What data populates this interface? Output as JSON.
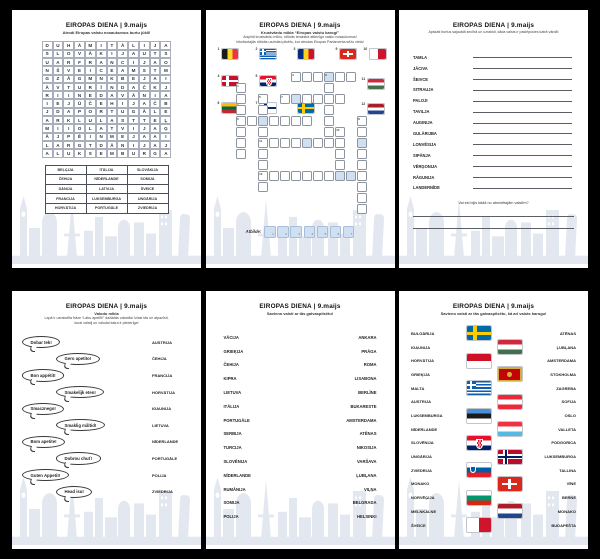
{
  "common": {
    "title": "EIROPAS DIENA  |  9.maijs"
  },
  "colors": {
    "board_bg": "#000000",
    "page_bg": "#ffffff",
    "highlight_blue": "#cfe0f3",
    "skyline_gray": "#e1e5ee"
  },
  "wordsearch": {
    "subtitle": "Atrodi Eiropas valstu nosaukumus burtu jūklī!",
    "grid_rows": [
      "DUHĀMITĀLIJA",
      "SLOVĀKIJAUTS",
      "UARFRANCIJAO",
      "NŠVEICEAMSTM",
      "GZĀGMNKBEJAI",
      "ĀVTURĪNDAČKJ",
      "RIINEDAVĀNIA",
      "IEJŪČEHIJAČB",
      "JDAPORTUGĀLE",
      "ARKLULASTTEĻ",
      "MIIOLATVIJAĢ",
      "ĀJPĒINMEJAAI",
      "LARGTDĀNIJAJ",
      "ALUKSEMBURGA"
    ],
    "table": [
      [
        "BEĻĢIJA",
        "ITĀLIJA",
        "SLOVĀKIJA"
      ],
      [
        "ČEHIJA",
        "NĪDERLANDE",
        "SOMIJA"
      ],
      [
        "DĀNIJA",
        "LATVIJA",
        "ŠVEICE"
      ],
      [
        "FRANCIJA",
        "LUKSEMBURGA",
        "UNGĀRIJA"
      ],
      [
        "HORVĀTIJA",
        "PORTUGĀLE",
        "ZVIEDRIJA"
      ]
    ]
  },
  "crossword": {
    "subtitle1": "Krustvārdu mīkla “Eiropas valstu karogi”",
    "subtitle2": "Aizpildi krustvārdu mīklu, rūtiņās ierakstot attiecīgo valstu nosaukumus!",
    "subtitle3": "Iekrāsotajās rūtiņās uzzināsi pilsētu, kur atrodas Eiropas Parlamenta sēžu vieta!",
    "flags": [
      {
        "num": "1",
        "country": "belgium"
      },
      {
        "num": "2",
        "country": "greece"
      },
      {
        "num": "3",
        "country": "romania"
      },
      {
        "num": "4",
        "country": "denmark"
      },
      {
        "num": "5",
        "country": "croatia"
      },
      {
        "num": "6",
        "country": "lithuania"
      },
      {
        "num": "7",
        "country": "finland"
      },
      {
        "num": "8",
        "country": "sweden"
      },
      {
        "num": "9",
        "country": "switzerland"
      },
      {
        "num": "10",
        "country": "malta"
      },
      {
        "num": "11",
        "country": "hungary"
      },
      {
        "num": "12",
        "country": "netherlands"
      }
    ],
    "words": [
      {
        "num": "4",
        "dir": "across",
        "row": 0,
        "col": 5,
        "len": 6,
        "blue": [
          3
        ]
      },
      {
        "num": "9",
        "dir": "down",
        "row": 0,
        "col": 8,
        "len": 6,
        "blue": [
          0
        ]
      },
      {
        "num": "1",
        "dir": "down",
        "row": 1,
        "col": 0,
        "len": 7,
        "blue": []
      },
      {
        "num": "7",
        "dir": "across",
        "row": 2,
        "col": 4,
        "len": 6,
        "blue": [
          1
        ]
      },
      {
        "num": "5",
        "dir": "down",
        "row": 2,
        "col": 2,
        "len": 9,
        "blue": []
      },
      {
        "num": "6",
        "dir": "across",
        "row": 4,
        "col": 0,
        "len": 7,
        "blue": [
          2
        ]
      },
      {
        "num": "8",
        "dir": "down",
        "row": 4,
        "col": 11,
        "len": 9,
        "blue": [
          2
        ]
      },
      {
        "num": "10",
        "dir": "down",
        "row": 5,
        "col": 9,
        "len": 5,
        "blue": [
          4
        ]
      },
      {
        "num": "11",
        "dir": "across",
        "row": 6,
        "col": 2,
        "len": 8,
        "blue": [
          4
        ]
      },
      {
        "num": "12",
        "dir": "across",
        "row": 9,
        "col": 2,
        "len": 10,
        "blue": [
          8
        ]
      }
    ],
    "answer_label": "Atbilde:",
    "answer_cells": [
      "1",
      "2",
      "3",
      "4",
      "5",
      "6",
      "7"
    ]
  },
  "anagrams": {
    "subtitle": "Apskati burtus sajauktā secībā un uzraksti, kāda valsts ir paslēpusies katrā vārdā!",
    "items": [
      "TAMLA",
      "JĀCIVA",
      "ŠEIVCE",
      "SITRAUJA",
      "PALOJI",
      "TAVILJA",
      "AUGINIJA",
      "GULĀRIJBA",
      "LONVĒSIJA",
      "SIPĀNJA",
      "VĒRĢONIJA",
      "RĀGUNIJA",
      "LANDERNĪDE"
    ],
    "question": "Vai esi bijis kādā no atminētajām valstīm?"
  },
  "languages": {
    "subtitle1": "Valodu mīkla",
    "subtitle2": "Lapā ir uzrakstīta frāze “Labu apetīti!” dažādās valodās! Izlasi tās un atpazīsti,",
    "subtitle3": "kurai valstij un valodai katra ir piederīga!",
    "bubbles": [
      "Dobar tek!",
      "Gero apetito!",
      "Bon appétit!",
      "Smakelijk eten!",
      "Smacznego!",
      "Smaklig måltid!",
      "Bom apetite!",
      "Dobrou chuť!",
      "Guten Appetit!",
      "Head isu!"
    ],
    "countries": [
      "AUSTRIJA",
      "ČEHIJA",
      "FRANCIJA",
      "HORVĀTIJA",
      "IGAUNIJA",
      "LIETUVA",
      "NĪDERLANDE",
      "PORTUGĀLE",
      "POLIJA",
      "ZVIEDRIJA"
    ]
  },
  "matching": {
    "subtitle": "Savieno valsti ar tās galvaspilsētu!",
    "countries": [
      "VĀCIJA",
      "GRIEĶIJA",
      "ČEHIJA",
      "KIPRA",
      "LIETUVA",
      "ITĀLIJA",
      "PORTUGĀLE",
      "SERBIJA",
      "TURCIJA",
      "SLOVĒNIJA",
      "NĪDERLANDE",
      "RUMĀNIJA",
      "SOMIJA",
      "POLIJA"
    ],
    "capitals": [
      "ANKARA",
      "PRĀGA",
      "ROMA",
      "LISABONA",
      "BERLĪNE",
      "BUKARESTE",
      "AMSTERDAMA",
      "ATĒNAS",
      "NIKOSIJA",
      "VARŠAVA",
      "ĻUBĻANA",
      "VIĻŅA",
      "BELGRADA",
      "HELSINKI"
    ]
  },
  "flagmatch": {
    "subtitle": "Savieno valsti ar tās galvaspilsētu, kā arī valsts karogu!",
    "rows": [
      {
        "country": "BULGĀRIJA",
        "flag": "sweden",
        "capital": "ATĒNAS"
      },
      {
        "country": "IGAUNIJA",
        "flag": "hungary",
        "capital": "ĻUBĻANA"
      },
      {
        "country": "HORVĀTIJA",
        "flag": "monaco",
        "capital": "AMSTERDAMA"
      },
      {
        "country": "GRIEĶIJA",
        "flag": "montenegro",
        "capital": "STOKHOLMA"
      },
      {
        "country": "MALTA",
        "flag": "greece",
        "capital": "ZAGREBA"
      },
      {
        "country": "AUSTRIJA",
        "flag": "austria",
        "capital": "SOFIJA"
      },
      {
        "country": "LUKSEMBURGA",
        "flag": "estonia",
        "capital": "OSLO"
      },
      {
        "country": "NĪDERLANDE",
        "flag": "luxembourg",
        "capital": "VALLETA"
      },
      {
        "country": "SLOVĒNIJA",
        "flag": "croatia",
        "capital": "PODGORICA"
      },
      {
        "country": "UNGĀRIJA",
        "flag": "norway",
        "capital": "LUKSEMBURGA"
      },
      {
        "country": "ZVIEDRIJA",
        "flag": "slovenia",
        "capital": "TALLINA"
      },
      {
        "country": "MONAKO",
        "flag": "switzerland",
        "capital": "VĪNE"
      },
      {
        "country": "NORVĒĢIJA",
        "flag": "bulgaria",
        "capital": "BERNE"
      },
      {
        "country": "MELNKALNE",
        "flag": "netherlands",
        "capital": "MONAKO"
      },
      {
        "country": "ŠVEICE",
        "flag": "malta",
        "capital": "BUDAPEŠTA"
      }
    ]
  }
}
